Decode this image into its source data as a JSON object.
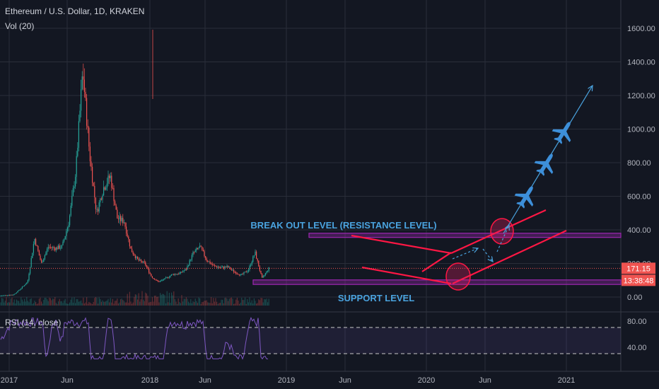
{
  "header": {
    "title": "Ethereum / U.S. Dollar, 1D, KRAKEN",
    "volume_label": "Vol (20)"
  },
  "rsi_label": "RSI (14, close)",
  "price_badge": "171.15",
  "countdown_badge": "13:38:48",
  "colors": {
    "background": "#131722",
    "grid": "#2a2e39",
    "up": "#26a69a",
    "down": "#ef5350",
    "annotation_text": "#4aa3df",
    "zone": "#9c27b0",
    "trendline": "#ff1744",
    "rsi": "#7e57c2",
    "plane": "#3d8fd9"
  },
  "annotations": {
    "breakout": "BREAK OUT LEVEL (RESISTANCE LEVEL)",
    "support": "SUPPORT LEVEL"
  },
  "chart_data": [
    {
      "type": "line",
      "name": "price",
      "x_ticks": [
        "2017",
        "Jun",
        "2018",
        "Jun",
        "2019",
        "Jun",
        "2020",
        "Jun",
        "2021"
      ],
      "y_ticks": [
        "1600.00",
        "1400.00",
        "1200.00",
        "1000.00",
        "800.00",
        "600.00",
        "400.00",
        "200.00",
        "0.00"
      ],
      "ylim": [
        0,
        1700
      ],
      "points": [
        [
          "2017-01",
          8
        ],
        [
          "2017-03",
          15
        ],
        [
          "2017-04",
          50
        ],
        [
          "2017-05",
          90
        ],
        [
          "2017-06",
          350
        ],
        [
          "2017-07",
          200
        ],
        [
          "2017-08",
          300
        ],
        [
          "2017-09",
          290
        ],
        [
          "2017-10",
          300
        ],
        [
          "2017-11",
          450
        ],
        [
          "2017-12",
          750
        ],
        [
          "2018-01",
          1350
        ],
        [
          "2018-02",
          850
        ],
        [
          "2018-03",
          500
        ],
        [
          "2018-04",
          650
        ],
        [
          "2018-05",
          720
        ],
        [
          "2018-06",
          470
        ],
        [
          "2018-07",
          450
        ],
        [
          "2018-08",
          280
        ],
        [
          "2018-09",
          220
        ],
        [
          "2018-10",
          200
        ],
        [
          "2018-11",
          120
        ],
        [
          "2018-12",
          90
        ],
        [
          "2019-01",
          110
        ],
        [
          "2019-02",
          135
        ],
        [
          "2019-03",
          140
        ],
        [
          "2019-04",
          165
        ],
        [
          "2019-05",
          260
        ],
        [
          "2019-06",
          300
        ],
        [
          "2019-07",
          220
        ],
        [
          "2019-08",
          185
        ],
        [
          "2019-09",
          175
        ],
        [
          "2019-10",
          180
        ],
        [
          "2019-11",
          150
        ],
        [
          "2019-12",
          130
        ],
        [
          "2020-01",
          160
        ],
        [
          "2020-02",
          265
        ],
        [
          "2020-03",
          110
        ],
        [
          "2020-04",
          171
        ]
      ],
      "zones": [
        {
          "label": "BREAK OUT LEVEL (RESISTANCE LEVEL)",
          "low": 355,
          "high": 380
        },
        {
          "label": "SUPPORT LEVEL",
          "low": 75,
          "high": 102
        }
      ],
      "last_price": 171.15
    },
    {
      "type": "line",
      "name": "RSI (14, close)",
      "y_ticks": [
        "80.00",
        "40.00"
      ],
      "ylim": [
        20,
        90
      ],
      "bands": [
        70,
        30
      ]
    }
  ]
}
